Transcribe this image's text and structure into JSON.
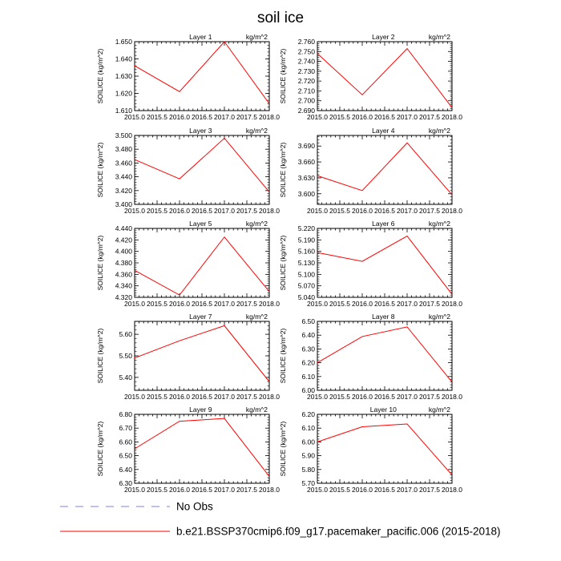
{
  "title": "soil ice",
  "chart_data": [
    {
      "type": "line",
      "panel_title": "Layer 1",
      "units": "kg/m^2",
      "ylabel": "SOILICE  (kg/m^2)",
      "x": [
        2015,
        2016,
        2017,
        2018
      ],
      "values": [
        1.636,
        1.621,
        1.65,
        1.614
      ],
      "ylim": [
        1.61,
        1.65
      ],
      "yticks": [
        "1.610",
        "1.620",
        "1.630",
        "1.640",
        "1.650"
      ],
      "xticks": [
        "2015.0",
        "2015.5",
        "2016.0",
        "2016.5",
        "2017.0",
        "2017.5",
        "2018.0"
      ]
    },
    {
      "type": "line",
      "panel_title": "Layer 2",
      "units": "kg/m^2",
      "ylabel": "SOILICE  (kg/m^2)",
      "x": [
        2015,
        2016,
        2017,
        2018
      ],
      "values": [
        2.748,
        2.706,
        2.753,
        2.693
      ],
      "ylim": [
        2.69,
        2.76
      ],
      "yticks": [
        "2.690",
        "2.700",
        "2.710",
        "2.720",
        "2.730",
        "2.740",
        "2.750",
        "2.760"
      ],
      "xticks": [
        "2015.0",
        "2015.5",
        "2016.0",
        "2016.5",
        "2017.0",
        "2017.5",
        "2018.0"
      ]
    },
    {
      "type": "line",
      "panel_title": "Layer 3",
      "units": "kg/m^2",
      "ylabel": "SOILICE  (kg/m^2)",
      "x": [
        2015,
        2016,
        2017,
        2018
      ],
      "values": [
        3.465,
        3.437,
        3.496,
        3.418
      ],
      "ylim": [
        3.4,
        3.5
      ],
      "yticks": [
        "3.400",
        "3.420",
        "3.440",
        "3.460",
        "3.480",
        "3.500"
      ],
      "xticks": [
        "2015.0",
        "2015.5",
        "2016.0",
        "2016.5",
        "2017.0",
        "2017.5",
        "2018.0"
      ]
    },
    {
      "type": "line",
      "panel_title": "Layer 4",
      "units": "kg/m^2",
      "ylabel": "SOILICE  (kg/m^2)",
      "x": [
        2015,
        2016,
        2017,
        2018
      ],
      "values": [
        3.634,
        3.606,
        3.696,
        3.598
      ],
      "ylim": [
        3.58,
        3.71
      ],
      "yticks": [
        "3.600",
        "3.630",
        "3.660",
        "3.690"
      ],
      "xticks": [
        "2015.0",
        "2015.5",
        "2016.0",
        "2016.5",
        "2017.0",
        "2017.5",
        "2018.0"
      ]
    },
    {
      "type": "line",
      "panel_title": "Layer 5",
      "units": "kg/m^2",
      "ylabel": "SOILICE  (kg/m^2)",
      "x": [
        2015,
        2016,
        2017,
        2018
      ],
      "values": [
        4.367,
        4.324,
        4.425,
        4.33
      ],
      "ylim": [
        4.32,
        4.44
      ],
      "yticks": [
        "4.320",
        "4.340",
        "4.360",
        "4.380",
        "4.400",
        "4.420",
        "4.440"
      ],
      "xticks": [
        "2015.0",
        "2015.5",
        "2016.0",
        "2016.5",
        "2017.0",
        "2017.5",
        "2018.0"
      ]
    },
    {
      "type": "line",
      "panel_title": "Layer 6",
      "units": "kg/m^2",
      "ylabel": "SOILICE  (kg/m^2)",
      "x": [
        2015,
        2016,
        2017,
        2018
      ],
      "values": [
        5.157,
        5.134,
        5.2,
        5.048
      ],
      "ylim": [
        5.04,
        5.22
      ],
      "yticks": [
        "5.040",
        "5.070",
        "5.100",
        "5.130",
        "5.160",
        "5.190",
        "5.220"
      ],
      "xticks": [
        "2015.0",
        "2015.5",
        "2016.0",
        "2016.5",
        "2017.0",
        "2017.5",
        "2018.0"
      ]
    },
    {
      "type": "line",
      "panel_title": "Layer 7",
      "units": "kg/m^2",
      "ylabel": "SOILICE  (kg/m^2)",
      "x": [
        2015,
        2016,
        2017,
        2018
      ],
      "values": [
        5.49,
        5.57,
        5.64,
        5.38
      ],
      "ylim": [
        5.34,
        5.66
      ],
      "yticks": [
        "5.40",
        "5.50",
        "5.60"
      ],
      "xticks": [
        "2015.0",
        "2015.5",
        "2016.0",
        "2016.5",
        "2017.0",
        "2017.5",
        "2018.0"
      ]
    },
    {
      "type": "line",
      "panel_title": "Layer 8",
      "units": "kg/m^2",
      "ylabel": "SOILICE  (kg/m^2)",
      "x": [
        2015,
        2016,
        2017,
        2018
      ],
      "values": [
        6.2,
        6.39,
        6.46,
        6.06
      ],
      "ylim": [
        6.0,
        6.5
      ],
      "yticks": [
        "6.00",
        "6.10",
        "6.20",
        "6.30",
        "6.40",
        "6.50"
      ],
      "xticks": [
        "2015.0",
        "2015.5",
        "2016.0",
        "2016.5",
        "2017.0",
        "2017.5",
        "2018.0"
      ]
    },
    {
      "type": "line",
      "panel_title": "Layer 9",
      "units": "kg/m^2",
      "ylabel": "SOILICE  (kg/m^2)",
      "x": [
        2015,
        2016,
        2017,
        2018
      ],
      "values": [
        6.55,
        6.75,
        6.77,
        6.35
      ],
      "ylim": [
        6.3,
        6.8
      ],
      "yticks": [
        "6.30",
        "6.40",
        "6.50",
        "6.60",
        "6.70",
        "6.80"
      ],
      "xticks": [
        "2015.0",
        "2015.5",
        "2016.0",
        "2016.5",
        "2017.0",
        "2017.5",
        "2018.0"
      ]
    },
    {
      "type": "line",
      "panel_title": "Layer 10",
      "units": "kg/m^2",
      "ylabel": "SOILICE  (kg/m^2)",
      "x": [
        2015,
        2016,
        2017,
        2018
      ],
      "values": [
        6.0,
        6.11,
        6.13,
        5.76
      ],
      "ylim": [
        5.7,
        6.2
      ],
      "yticks": [
        "5.70",
        "5.80",
        "5.90",
        "6.00",
        "6.10",
        "6.20"
      ],
      "xticks": [
        "2015.0",
        "2015.5",
        "2016.0",
        "2016.5",
        "2017.0",
        "2017.5",
        "2018.0"
      ]
    }
  ],
  "legend": [
    {
      "label": "No Obs",
      "color": "#8080e0",
      "style": "dashed"
    },
    {
      "label": "b.e21.BSSP370cmip6.f09_g17.pacemaker_pacific.006 (2015-2018)",
      "color": "#ff0000",
      "style": "solid"
    }
  ],
  "colors": {
    "series": "#ff0000",
    "obs": "#8080e0"
  }
}
